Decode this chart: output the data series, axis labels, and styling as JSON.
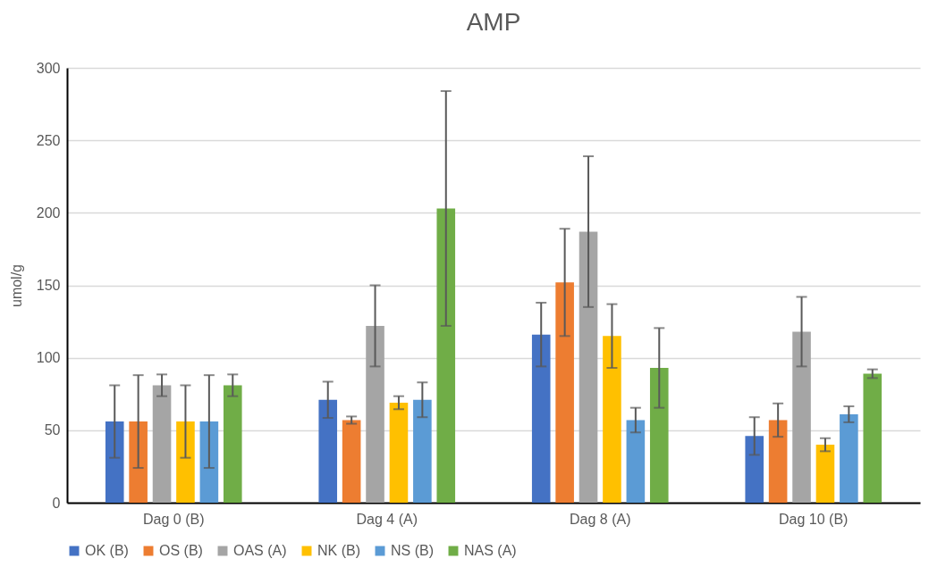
{
  "chart_data": {
    "type": "bar",
    "title": "AMP",
    "ylabel": "umol/g",
    "categories": [
      "Dag 0 (B)",
      "Dag 4 (A)",
      "Dag 8 (A)",
      "Dag 10 (B)"
    ],
    "series": [
      {
        "name": "OK (B)",
        "color": "#4472c4",
        "values": [
          56,
          71,
          116,
          46
        ],
        "errors": [
          25,
          12.5,
          22,
          13
        ]
      },
      {
        "name": "OS (B)",
        "color": "#ed7d31",
        "values": [
          56,
          57,
          152,
          57
        ],
        "errors": [
          32,
          2.5,
          37,
          11.5
        ]
      },
      {
        "name": "OAS (A)",
        "color": "#a5a5a5",
        "values": [
          81,
          122,
          187,
          118
        ],
        "errors": [
          7.5,
          28,
          52,
          24
        ]
      },
      {
        "name": "NK (B)",
        "color": "#ffc000",
        "values": [
          56,
          69,
          115,
          40
        ],
        "errors": [
          25,
          4.5,
          22,
          4.5
        ]
      },
      {
        "name": "NS (B)",
        "color": "#5b9bd5",
        "values": [
          56,
          71,
          57,
          61
        ],
        "errors": [
          32,
          12,
          8.5,
          5.5
        ]
      },
      {
        "name": "NAS (A)",
        "color": "#70ad47",
        "values": [
          81,
          203,
          93,
          89
        ],
        "errors": [
          7.5,
          81,
          27.5,
          3
        ]
      }
    ],
    "ylim": [
      0,
      300
    ],
    "yticks": [
      0,
      50,
      100,
      150,
      200,
      250,
      300
    ],
    "grid": "y",
    "legend": "bottom"
  }
}
